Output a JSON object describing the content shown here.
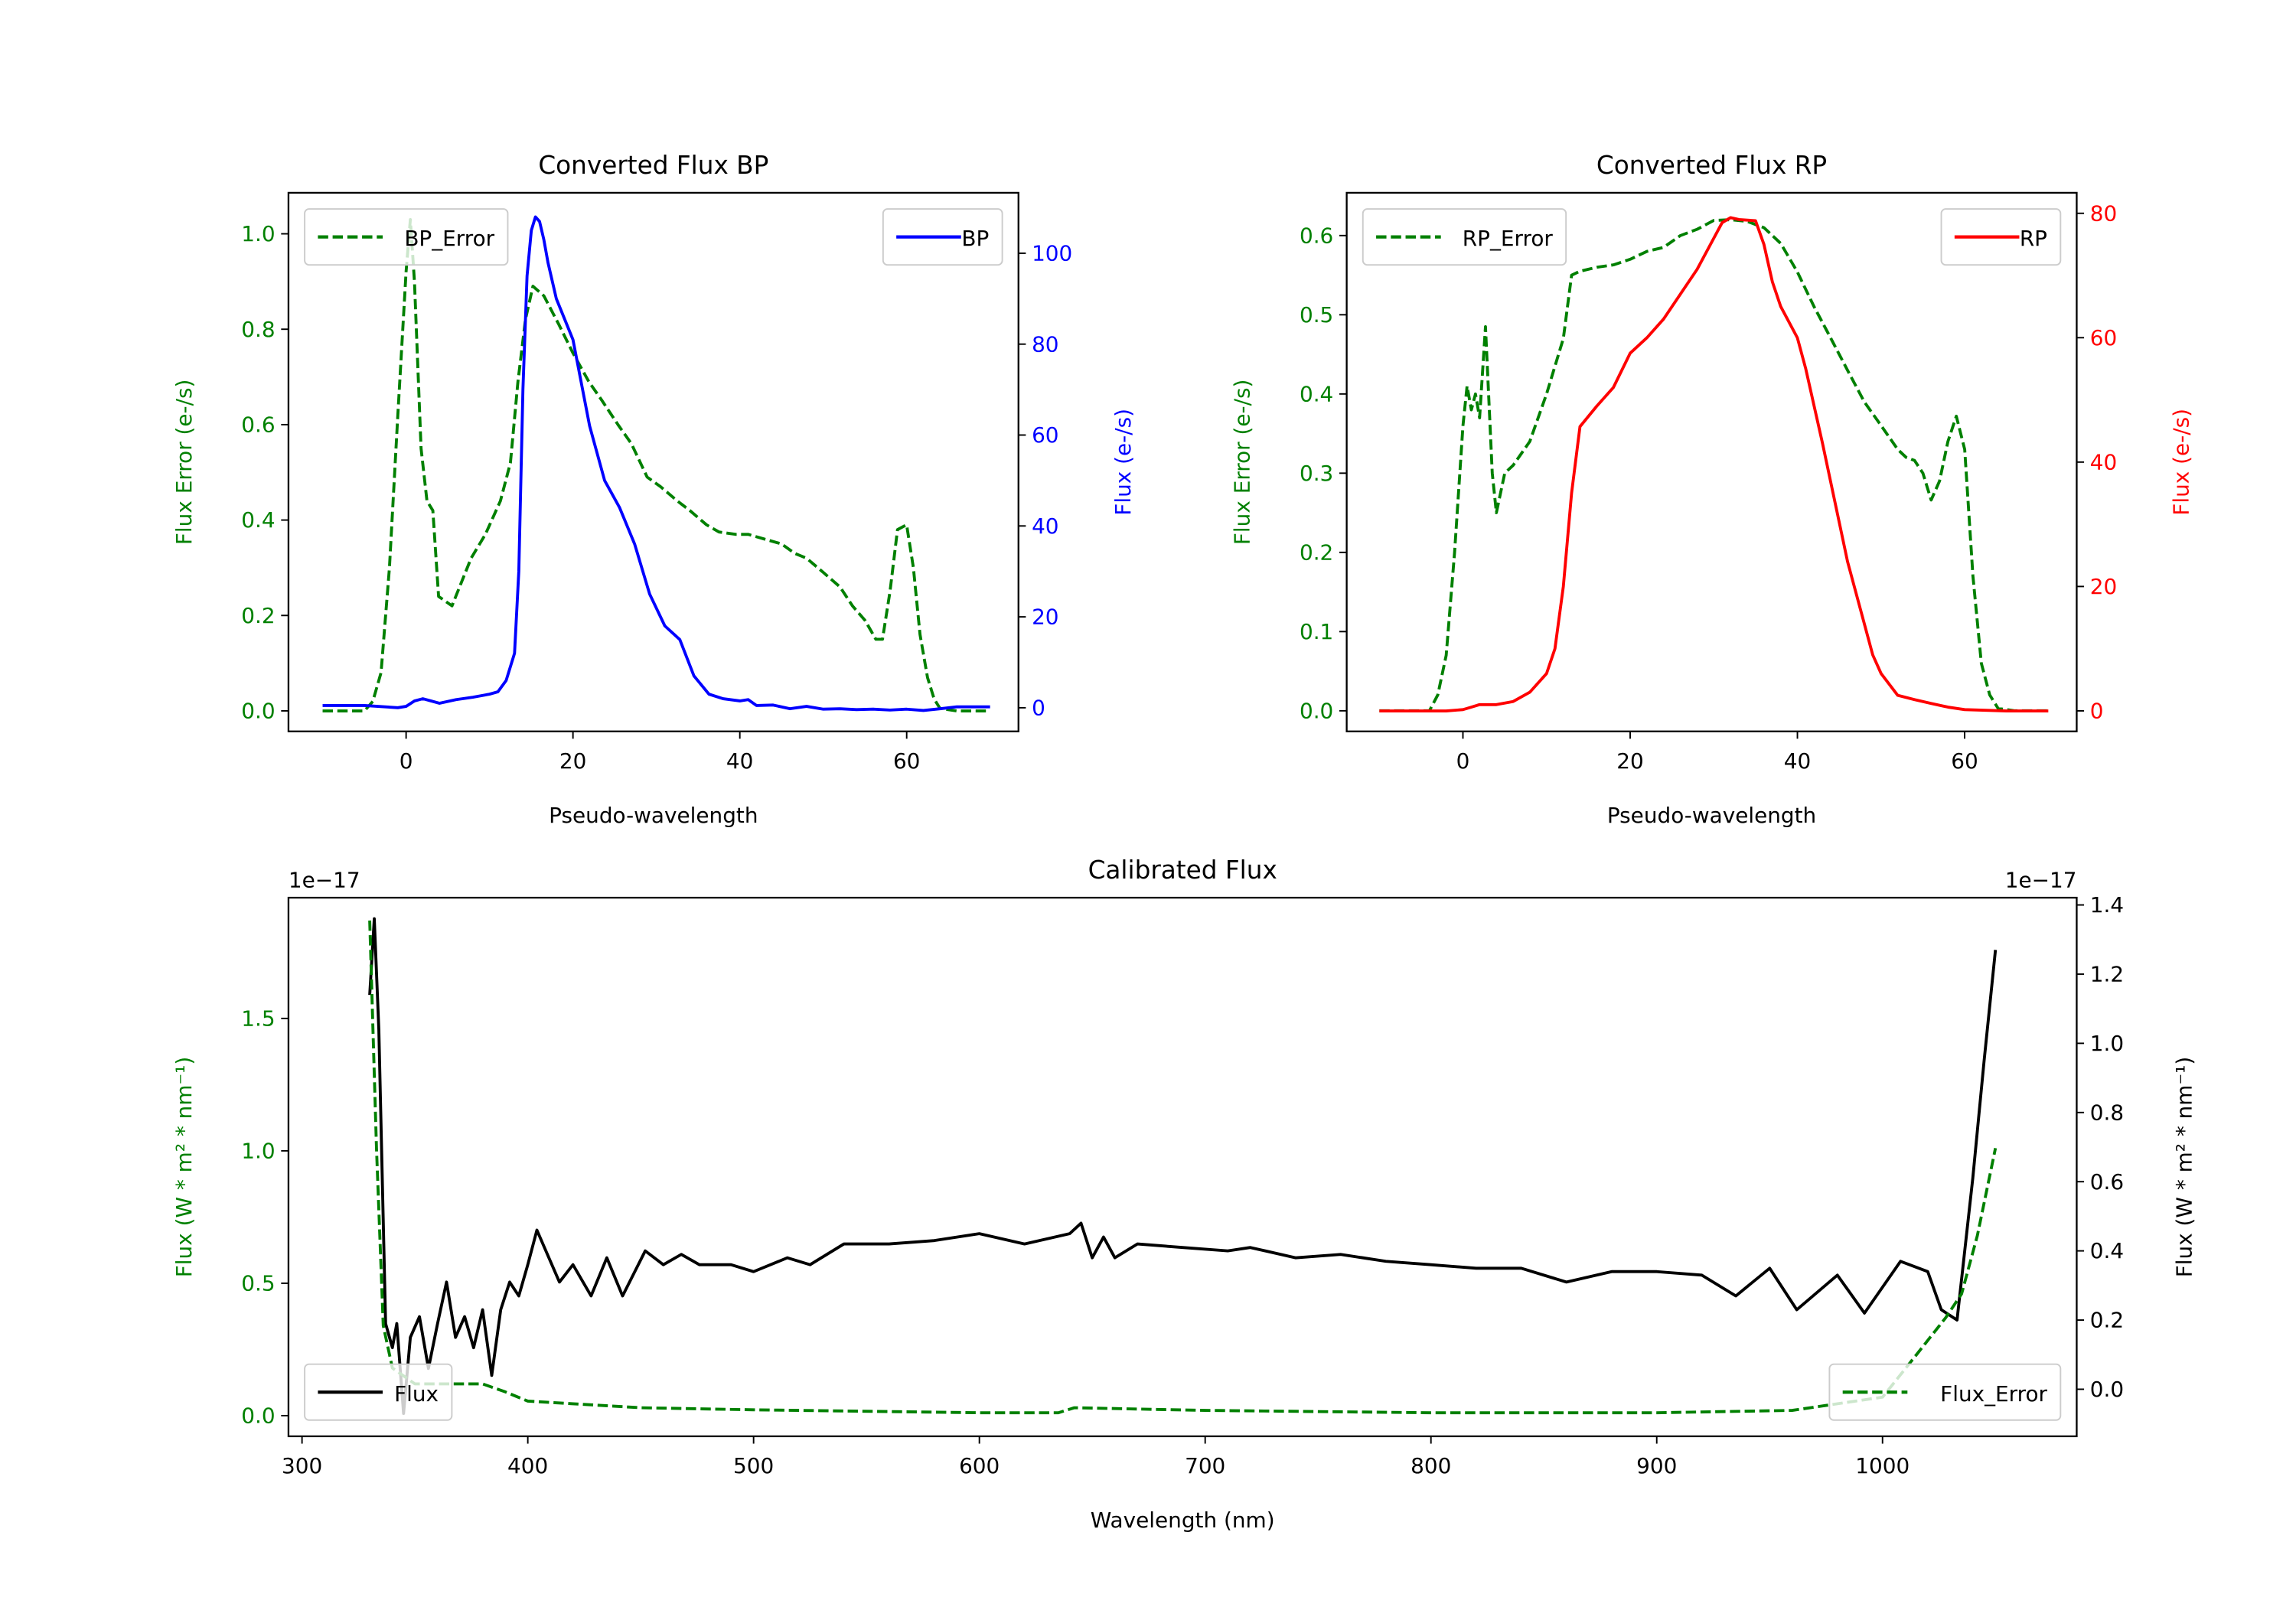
{
  "chart_data": [
    {
      "id": "bp",
      "type": "line",
      "title": "Converted Flux BP",
      "xlabel": "Pseudo-wavelength",
      "ylabel_left": "Flux Error (e-/s)",
      "ylabel_right": "Flux (e-/s)",
      "left_color": "#008000",
      "right_color": "#0000ff",
      "xlim": [
        -14.1,
        73.4
      ],
      "ylim_left": [
        -0.043,
        1.086
      ],
      "ylim_right": [
        -5.2,
        113.3
      ],
      "xticks": [
        0,
        20,
        40,
        60
      ],
      "xtick_labels": [
        "0",
        "20",
        "40",
        "60"
      ],
      "yticks_left": [
        0.0,
        0.2,
        0.4,
        0.6,
        0.8,
        1.0
      ],
      "ytick_labels_left": [
        "0.0",
        "0.2",
        "0.4",
        "0.6",
        "0.8",
        "1.0"
      ],
      "yticks_right": [
        0,
        20,
        40,
        60,
        80,
        100
      ],
      "ytick_labels_right": [
        "0",
        "20",
        "40",
        "60",
        "80",
        "100"
      ],
      "series": [
        {
          "name": "BP_Error",
          "axis": "left",
          "style": "dashed",
          "color": "#008000",
          "legend": "upper-left",
          "x": [
            -10,
            -5,
            -4,
            -3,
            -2,
            -1,
            0,
            0.5,
            1,
            1.8,
            2.5,
            3.2,
            3.9,
            5.5,
            7.8,
            9.5,
            11.3,
            12.5,
            13.4,
            14.3,
            15.2,
            16.5,
            18.3,
            20,
            21.9,
            23.5,
            25.4,
            27,
            28.9,
            30.5,
            32.5,
            34,
            36,
            37.5,
            39.5,
            41,
            43,
            45,
            46.6,
            48,
            50,
            52,
            53.5,
            55,
            56.3,
            57.1,
            58,
            58.9,
            60,
            60.8,
            61.6,
            62.5,
            63.3,
            64,
            66,
            70
          ],
          "y": [
            0,
            0,
            0.02,
            0.08,
            0.3,
            0.62,
            0.92,
            1.03,
            0.9,
            0.55,
            0.44,
            0.42,
            0.24,
            0.22,
            0.32,
            0.37,
            0.44,
            0.52,
            0.69,
            0.82,
            0.89,
            0.87,
            0.81,
            0.75,
            0.69,
            0.65,
            0.6,
            0.56,
            0.49,
            0.47,
            0.44,
            0.42,
            0.39,
            0.375,
            0.37,
            0.37,
            0.36,
            0.35,
            0.33,
            0.32,
            0.29,
            0.26,
            0.22,
            0.19,
            0.15,
            0.15,
            0.25,
            0.38,
            0.39,
            0.3,
            0.16,
            0.07,
            0.025,
            0.005,
            0,
            0
          ]
        },
        {
          "name": "BP",
          "axis": "right",
          "style": "solid",
          "color": "#0000ff",
          "legend": "upper-right",
          "x": [
            -10,
            -5,
            -1,
            0,
            1,
            2,
            3,
            4,
            6,
            8,
            10,
            11,
            12,
            13,
            13.5,
            14,
            14.5,
            15,
            15.5,
            16,
            16.5,
            17,
            18,
            20,
            22,
            23.8,
            25.6,
            27.4,
            29.2,
            31,
            32.8,
            34.5,
            36.3,
            38,
            40,
            41,
            42,
            44,
            46,
            48,
            50,
            52,
            54,
            56,
            58,
            60,
            62,
            64,
            66,
            70
          ],
          "y": [
            0.5,
            0.5,
            0,
            0.3,
            1.5,
            2,
            1.5,
            1,
            1.8,
            2.3,
            3,
            3.5,
            6,
            12,
            30,
            70,
            95,
            105,
            108,
            107,
            103,
            98,
            90,
            81,
            62,
            50,
            44,
            36,
            25,
            18,
            15,
            7,
            3,
            2,
            1.5,
            1.8,
            0.5,
            0.6,
            -0.2,
            0.3,
            -0.3,
            -0.2,
            -0.4,
            -0.3,
            -0.5,
            -0.3,
            -0.6,
            -0.2,
            0.2,
            0.2
          ]
        }
      ]
    },
    {
      "id": "rp",
      "type": "line",
      "title": "Converted Flux RP",
      "xlabel": "Pseudo-wavelength",
      "ylabel_left": "Flux Error (e-/s)",
      "ylabel_right": "Flux (e-/s)",
      "left_color": "#008000",
      "right_color": "#ff0000",
      "xlim": [
        -13.9,
        73.4
      ],
      "ylim_left": [
        -0.026,
        0.654
      ],
      "ylim_right": [
        -3.3,
        83.3
      ],
      "xticks": [
        0,
        20,
        40,
        60
      ],
      "xtick_labels": [
        "0",
        "20",
        "40",
        "60"
      ],
      "yticks_left": [
        0.0,
        0.1,
        0.2,
        0.3,
        0.4,
        0.5,
        0.6
      ],
      "ytick_labels_left": [
        "0.0",
        "0.1",
        "0.2",
        "0.3",
        "0.4",
        "0.5",
        "0.6"
      ],
      "yticks_right": [
        0,
        20,
        40,
        60,
        80
      ],
      "ytick_labels_right": [
        "0",
        "20",
        "40",
        "60",
        "80"
      ],
      "series": [
        {
          "name": "RP_Error",
          "axis": "left",
          "style": "dashed",
          "color": "#008000",
          "legend": "upper-left",
          "x": [
            -10,
            -4,
            -3,
            -2,
            -1,
            0,
            0.5,
            1,
            1.5,
            2,
            2.7,
            3.5,
            4,
            5,
            6,
            8,
            10,
            12,
            13,
            14,
            16,
            18,
            20,
            22,
            24,
            26,
            28,
            30,
            32,
            34,
            36,
            38,
            40,
            42,
            44,
            46,
            48,
            50,
            52,
            53,
            54,
            55,
            56,
            57,
            58,
            59,
            60,
            61,
            62,
            63,
            64,
            66,
            70
          ],
          "y": [
            0,
            0,
            0.02,
            0.07,
            0.2,
            0.36,
            0.41,
            0.38,
            0.4,
            0.37,
            0.485,
            0.3,
            0.25,
            0.3,
            0.31,
            0.34,
            0.4,
            0.47,
            0.55,
            0.555,
            0.56,
            0.563,
            0.57,
            0.58,
            0.585,
            0.6,
            0.608,
            0.619,
            0.62,
            0.618,
            0.61,
            0.59,
            0.554,
            0.51,
            0.47,
            0.43,
            0.39,
            0.36,
            0.33,
            0.32,
            0.316,
            0.3,
            0.266,
            0.29,
            0.34,
            0.372,
            0.33,
            0.17,
            0.06,
            0.02,
            0.003,
            0,
            0
          ]
        },
        {
          "name": "RP",
          "axis": "right",
          "style": "solid",
          "color": "#ff0000",
          "legend": "upper-right",
          "x": [
            -10,
            -2,
            0,
            1,
            2,
            4,
            6,
            8,
            10,
            11,
            12,
            13,
            14,
            16,
            18,
            20,
            22,
            24,
            26,
            28,
            30,
            31,
            32,
            33,
            35,
            36,
            37,
            38,
            40,
            41,
            43,
            46,
            49,
            50,
            52,
            54,
            56,
            58,
            60,
            65,
            70
          ],
          "y": [
            0,
            0,
            0.2,
            0.6,
            1,
            1,
            1.5,
            3,
            6,
            10,
            20,
            35,
            45.7,
            49,
            52,
            57.5,
            60,
            63,
            67,
            71,
            76,
            78.5,
            79.3,
            79,
            78.8,
            75,
            69,
            65,
            60,
            55,
            43,
            24,
            9,
            6,
            2.5,
            1.8,
            1.2,
            0.6,
            0.2,
            0,
            0
          ]
        }
      ]
    },
    {
      "id": "cal",
      "type": "line",
      "title": "Calibrated Flux",
      "xlabel": "Wavelength (nm)",
      "ylabel_left": "Flux (W * m² * nm⁻¹)",
      "ylabel_right": "Flux (W * m² * nm⁻¹)",
      "offset_left": "1e−17",
      "offset_right": "1e−17",
      "left_color": "#008000",
      "right_color": "#000000",
      "xlim": [
        294,
        1086
      ],
      "ylim_left": [
        -0.078,
        1.956
      ],
      "ylim_right": [
        -0.136,
        1.421
      ],
      "xticks": [
        300,
        400,
        500,
        600,
        700,
        800,
        900,
        1000
      ],
      "xtick_labels": [
        "300",
        "400",
        "500",
        "600",
        "700",
        "800",
        "900",
        "1000"
      ],
      "yticks_left": [
        0.0,
        0.5,
        1.0,
        1.5
      ],
      "ytick_labels_left": [
        "0.0",
        "0.5",
        "1.0",
        "1.5"
      ],
      "yticks_right": [
        0.0,
        0.2,
        0.4,
        0.6,
        0.8,
        1.0,
        1.2,
        1.4
      ],
      "ytick_labels_right": [
        "0.0",
        "0.2",
        "0.4",
        "0.6",
        "0.8",
        "1.0",
        "1.2",
        "1.4"
      ],
      "series": [
        {
          "name": "Flux",
          "axis": "right",
          "style": "solid",
          "color": "#000000",
          "legend": "lower-left",
          "x": [
            330,
            332,
            334,
            337,
            340,
            342,
            345,
            348,
            352,
            356,
            360,
            364,
            368,
            372,
            376,
            380,
            384,
            388,
            392,
            396,
            400,
            404,
            408,
            414,
            420,
            428,
            435,
            442,
            452,
            460,
            468,
            476,
            490,
            500,
            515,
            525,
            540,
            560,
            580,
            600,
            620,
            640,
            645,
            650,
            655,
            660,
            670,
            690,
            710,
            720,
            740,
            760,
            780,
            800,
            820,
            840,
            860,
            880,
            900,
            920,
            935,
            950,
            962,
            980,
            992,
            1008,
            1020,
            1026,
            1033,
            1040,
            1045,
            1050
          ],
          "y": [
            1.14,
            1.36,
            1.04,
            0.19,
            0.12,
            0.19,
            -0.07,
            0.15,
            0.21,
            0.06,
            0.19,
            0.31,
            0.15,
            0.21,
            0.12,
            0.23,
            0.04,
            0.23,
            0.31,
            0.27,
            0.36,
            0.46,
            0.4,
            0.31,
            0.36,
            0.27,
            0.38,
            0.27,
            0.4,
            0.36,
            0.39,
            0.36,
            0.36,
            0.34,
            0.38,
            0.36,
            0.42,
            0.42,
            0.43,
            0.45,
            0.42,
            0.45,
            0.48,
            0.38,
            0.44,
            0.38,
            0.42,
            0.41,
            0.4,
            0.41,
            0.38,
            0.39,
            0.37,
            0.36,
            0.35,
            0.35,
            0.31,
            0.34,
            0.34,
            0.33,
            0.27,
            0.35,
            0.23,
            0.33,
            0.22,
            0.37,
            0.34,
            0.23,
            0.2,
            0.61,
            0.95,
            1.27
          ]
        },
        {
          "name": "Flux_Error",
          "axis": "left",
          "style": "dashed",
          "color": "#008000",
          "legend": "lower-right",
          "x": [
            330,
            333,
            336,
            340,
            350,
            380,
            390,
            400,
            420,
            450,
            500,
            600,
            635,
            642,
            700,
            800,
            900,
            960,
            1000,
            1015,
            1028,
            1035,
            1042,
            1050
          ],
          "y": [
            1.87,
            1.01,
            0.34,
            0.18,
            0.12,
            0.12,
            0.09,
            0.055,
            0.045,
            0.03,
            0.022,
            0.011,
            0.011,
            0.03,
            0.02,
            0.011,
            0.011,
            0.02,
            0.07,
            0.23,
            0.37,
            0.46,
            0.68,
            1.01
          ]
        }
      ]
    }
  ]
}
